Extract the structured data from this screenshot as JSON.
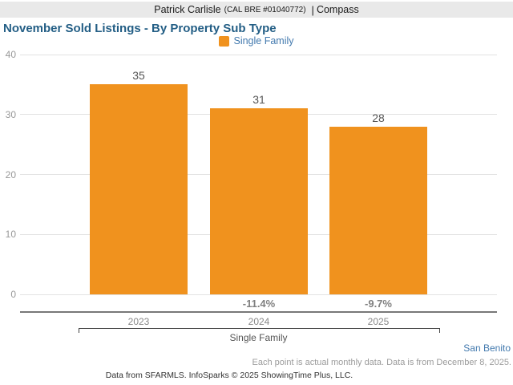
{
  "header": {
    "agent_name": "Patrick Carlisle",
    "license": "(CAL BRE #01040772)",
    "separator": "|",
    "brand": "Compass"
  },
  "title": "November Sold Listings - By Property Sub Type",
  "legend": {
    "items": [
      {
        "label": "Single Family",
        "color": "#F0921E"
      }
    ]
  },
  "colors": {
    "accent_orange": "#F0921E",
    "title_blue": "#235E85",
    "link_blue": "#4279AE"
  },
  "chart_data": {
    "type": "bar",
    "title": "November Sold Listings - By Property Sub Type",
    "categories": [
      "2023",
      "2024",
      "2025"
    ],
    "series": [
      {
        "name": "Single Family",
        "values": [
          35,
          31,
          28
        ],
        "color": "#F0921E"
      }
    ],
    "value_labels": [
      "35",
      "31",
      "28"
    ],
    "change_labels": [
      "",
      "-11.4%",
      "-9.7%"
    ],
    "group_label": "Single Family",
    "xlabel": "Single Family",
    "ylabel": "",
    "ylim": [
      0,
      40
    ],
    "yticks": [
      0,
      10,
      20,
      30,
      40
    ],
    "grid": true,
    "legend_position": "top"
  },
  "footer": {
    "region": "San Benito",
    "note": "Each point is actual monthly data. Data is from December 8, 2025.",
    "attribution": "Data from SFARMLS. InfoSparks © 2025 ShowingTime Plus, LLC."
  }
}
